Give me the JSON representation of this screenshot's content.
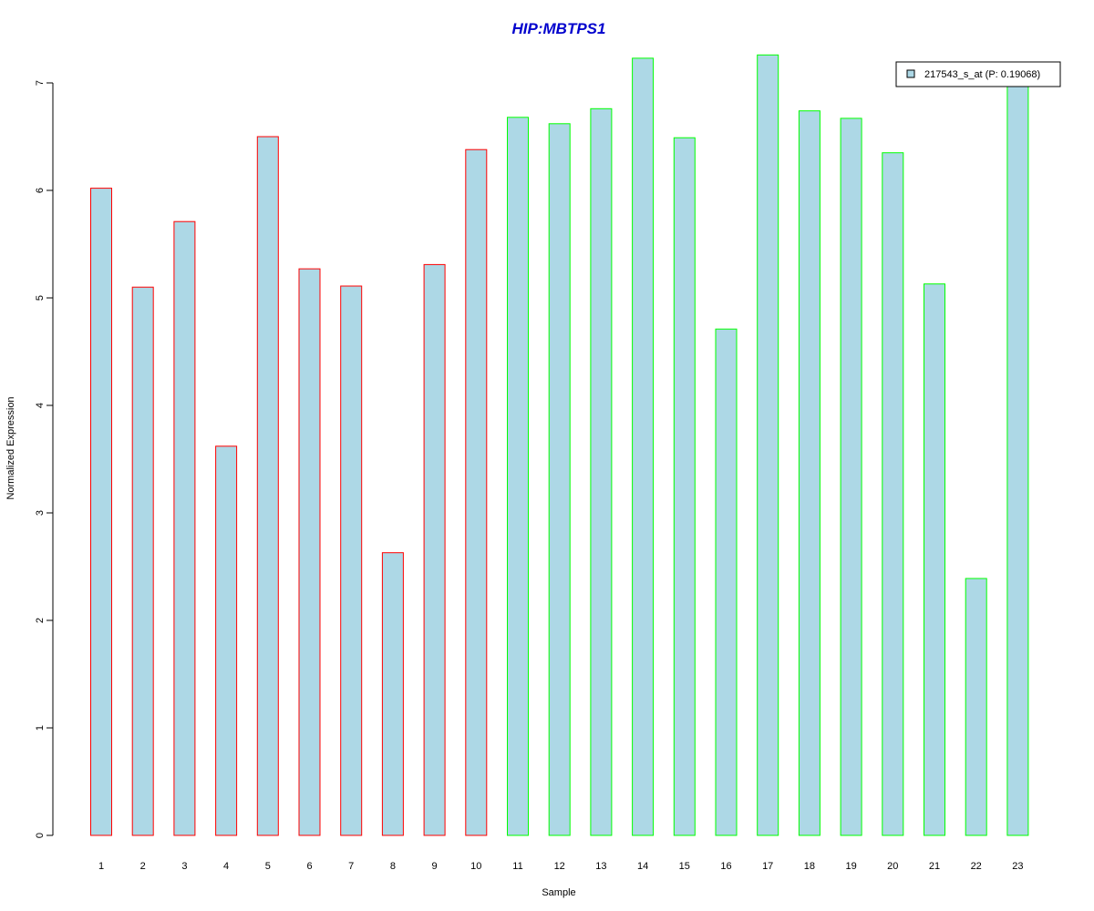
{
  "chart_data": {
    "type": "bar",
    "title": "HIP:MBTPS1",
    "xlabel": "Sample",
    "ylabel": "Normalized Expression",
    "categories": [
      "1",
      "2",
      "3",
      "4",
      "5",
      "6",
      "7",
      "8",
      "9",
      "10",
      "11",
      "12",
      "13",
      "14",
      "15",
      "16",
      "17",
      "18",
      "19",
      "20",
      "21",
      "22",
      "23"
    ],
    "series": [
      {
        "name": "217543_s_at (P: 0.19068)",
        "values": [
          6.02,
          5.1,
          5.71,
          3.62,
          6.5,
          5.27,
          5.11,
          2.63,
          5.31,
          6.38,
          6.68,
          6.62,
          6.76,
          7.23,
          6.49,
          4.71,
          7.26,
          6.74,
          6.67,
          6.35,
          5.13,
          2.39,
          6.97
        ]
      }
    ],
    "groups": [
      1,
      1,
      1,
      1,
      1,
      1,
      1,
      1,
      1,
      1,
      2,
      2,
      2,
      2,
      2,
      2,
      2,
      2,
      2,
      2,
      2,
      2,
      2
    ],
    "yticks": [
      0,
      1,
      2,
      3,
      4,
      5,
      6,
      7
    ],
    "ylim": [
      0,
      7.3
    ],
    "colors": {
      "bar_fill": "#add8e6",
      "group1_border": "#ff0000",
      "group2_border": "#00ff00",
      "title": "#0000cd"
    },
    "legend_position": "top-right",
    "grid": false
  }
}
